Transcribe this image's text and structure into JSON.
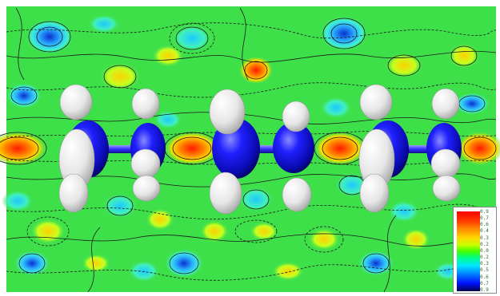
{
  "legend": {
    "ticks": [
      "0.9",
      "0.7",
      "0.6",
      "0.4",
      "0.3",
      "0.2",
      "0.0",
      "0.2",
      "0.3",
      "0.5",
      "0.6",
      "0.7",
      "0.9"
    ]
  },
  "colors": {
    "field_base": "#3ee04a",
    "high_density": "#ff2a1a",
    "low_density": "#1a4cff",
    "nitrogen_atom": "#1a1aff",
    "hydrogen_atom": "#f2f2f2"
  }
}
